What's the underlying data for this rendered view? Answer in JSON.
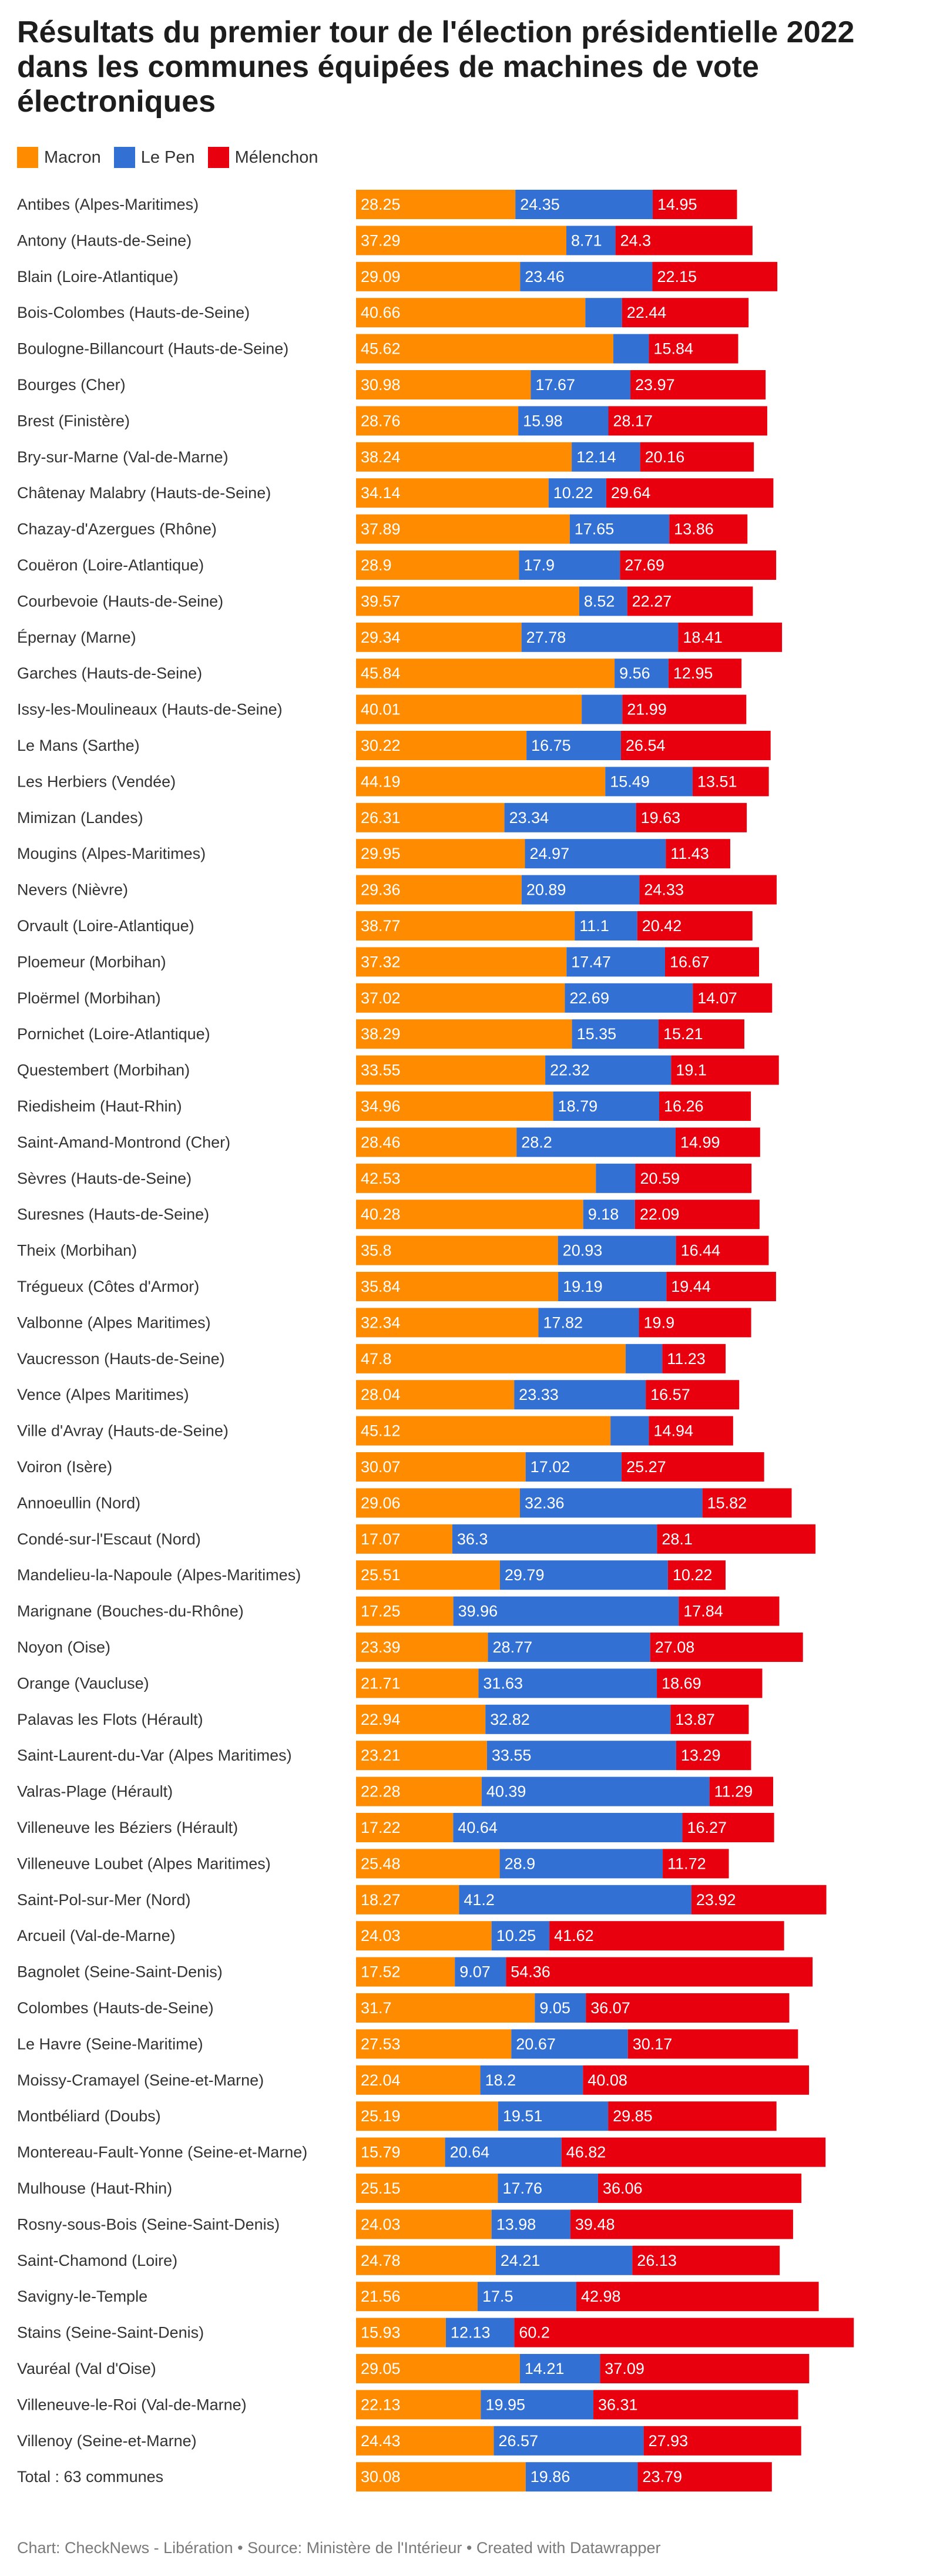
{
  "chart_data": {
    "type": "bar",
    "orientation": "horizontal",
    "stacked": true,
    "title": "Résultats du premier tour de l'élection présidentielle 2022 dans les communes équipées de machines de vote électroniques",
    "xlabel": "",
    "ylabel": "",
    "legend": "top-left",
    "grid": false,
    "xlim": [
      0,
      100
    ],
    "colors": {
      "Macron": "#ff8c00",
      "Le Pen": "#3370d4",
      "Mélenchon": "#e8000e"
    },
    "categories": [
      "Antibes (Alpes-Maritimes)",
      "Antony (Hauts-de-Seine)",
      "Blain (Loire-Atlantique)",
      "Bois-Colombes (Hauts-de-Seine)",
      "Boulogne-Billancourt (Hauts-de-Seine)",
      "Bourges (Cher)",
      "Brest (Finistère)",
      "Bry-sur-Marne (Val-de-Marne)",
      "Châtenay Malabry (Hauts-de-Seine)",
      "Chazay-d'Azergues (Rhône)",
      "Couëron (Loire-Atlantique)",
      "Courbevoie (Hauts-de-Seine)",
      "Épernay (Marne)",
      "Garches (Hauts-de-Seine)",
      "Issy-les-Moulineaux (Hauts-de-Seine)",
      "Le Mans (Sarthe)",
      "Les Herbiers (Vendée)",
      "Mimizan (Landes)",
      "Mougins (Alpes-Maritimes)",
      "Nevers (Nièvre)",
      "Orvault (Loire-Atlantique)",
      "Ploemeur (Morbihan)",
      "Ploërmel (Morbihan)",
      "Pornichet (Loire-Atlantique)",
      "Questembert (Morbihan)",
      "Riedisheim (Haut-Rhin)",
      "Saint-Amand-Montrond (Cher)",
      "Sèvres (Hauts-de-Seine)",
      "Suresnes (Hauts-de-Seine)",
      "Theix (Morbihan)",
      "Trégueux (Côtes d'Armor)",
      "Valbonne (Alpes Maritimes)",
      "Vaucresson (Hauts-de-Seine)",
      "Vence (Alpes Maritimes)",
      "Ville d'Avray (Hauts-de-Seine)",
      "Voiron (Isère)",
      "Annoeullin (Nord)",
      "Condé-sur-l'Escaut (Nord)",
      "Mandelieu-la-Napoule (Alpes-Maritimes)",
      "Marignane (Bouches-du-Rhône)",
      "Noyon (Oise)",
      "Orange (Vaucluse)",
      "Palavas les Flots (Hérault)",
      "Saint-Laurent-du-Var (Alpes Maritimes)",
      "Valras-Plage (Hérault)",
      "Villeneuve les Béziers (Hérault)",
      "Villeneuve Loubet (Alpes Maritimes)",
      "Saint-Pol-sur-Mer (Nord)",
      "Arcueil (Val-de-Marne)",
      "Bagnolet (Seine-Saint-Denis)",
      "Colombes (Hauts-de-Seine)",
      "Le Havre (Seine-Maritime)",
      "Moissy-Cramayel (Seine-et-Marne)",
      "Montbéliard (Doubs)",
      "Montereau-Fault-Yonne (Seine-et-Marne)",
      "Mulhouse (Haut-Rhin)",
      "Rosny-sous-Bois (Seine-Saint-Denis)",
      "Saint-Chamond (Loire)",
      "Savigny-le-Temple",
      "Stains (Seine-Saint-Denis)",
      "Vauréal (Val d'Oise)",
      "Villeneuve-le-Roi (Val-de-Marne)",
      "Villenoy (Seine-et-Marne)",
      "Total : 63 communes"
    ],
    "series": [
      {
        "name": "Macron",
        "values": [
          28.25,
          37.29,
          29.09,
          40.66,
          45.62,
          30.98,
          28.76,
          38.24,
          34.14,
          37.89,
          28.9,
          39.57,
          29.34,
          45.84,
          40.01,
          30.22,
          44.19,
          26.31,
          29.95,
          29.36,
          38.77,
          37.32,
          37.02,
          38.29,
          33.55,
          34.96,
          28.46,
          42.53,
          40.28,
          35.8,
          35.84,
          32.34,
          47.8,
          28.04,
          45.12,
          30.07,
          29.06,
          17.07,
          25.51,
          17.25,
          23.39,
          21.71,
          22.94,
          23.21,
          22.28,
          17.22,
          25.48,
          18.27,
          24.03,
          17.52,
          31.7,
          27.53,
          22.04,
          25.19,
          15.79,
          25.15,
          24.03,
          24.78,
          21.56,
          15.93,
          29.05,
          22.13,
          24.43,
          30.08
        ]
      },
      {
        "name": "Le Pen",
        "values": [
          24.35,
          8.71,
          23.46,
          6.5,
          6.3,
          17.67,
          15.98,
          12.14,
          10.22,
          17.65,
          17.9,
          8.52,
          27.78,
          9.56,
          7.2,
          16.75,
          15.49,
          23.34,
          24.97,
          20.89,
          11.1,
          17.47,
          22.69,
          15.35,
          22.32,
          18.79,
          28.2,
          7.0,
          9.18,
          20.93,
          19.19,
          17.82,
          6.5,
          23.33,
          6.8,
          17.02,
          32.36,
          36.3,
          29.79,
          39.96,
          28.77,
          31.63,
          32.82,
          33.55,
          40.39,
          40.64,
          28.9,
          41.2,
          10.25,
          9.07,
          9.05,
          20.67,
          18.2,
          19.51,
          20.64,
          17.76,
          13.98,
          24.21,
          17.5,
          12.13,
          14.21,
          19.95,
          26.57,
          19.86
        ]
      },
      {
        "name": "Mélenchon",
        "values": [
          14.95,
          24.3,
          22.15,
          22.44,
          15.84,
          23.97,
          28.17,
          20.16,
          29.64,
          13.86,
          27.69,
          22.27,
          18.41,
          12.95,
          21.99,
          26.54,
          13.51,
          19.63,
          11.43,
          24.33,
          20.42,
          16.67,
          14.07,
          15.21,
          19.1,
          16.26,
          14.99,
          20.59,
          22.09,
          16.44,
          19.44,
          19.9,
          11.23,
          16.57,
          14.94,
          25.27,
          15.82,
          28.1,
          10.22,
          17.84,
          27.08,
          18.69,
          13.87,
          13.29,
          11.29,
          16.27,
          11.72,
          23.92,
          41.62,
          54.36,
          36.07,
          30.17,
          40.08,
          29.85,
          46.82,
          36.06,
          39.48,
          26.13,
          42.98,
          60.2,
          37.09,
          36.31,
          27.93,
          23.79
        ]
      }
    ],
    "labels": {
      "Le Pen": [
        "24.35",
        "8.71",
        "23.46",
        "",
        "",
        "17.67",
        "15.98",
        "12.14",
        "10.22",
        "17.65",
        "17.9",
        "8.52",
        "27.78",
        "9.56",
        "",
        "16.75",
        "15.49",
        "23.34",
        "24.97",
        "20.89",
        "11.1",
        "17.47",
        "22.69",
        "15.35",
        "22.32",
        "18.79",
        "28.2",
        "",
        "9.18",
        "20.93",
        "19.19",
        "17.82",
        "",
        "23.33",
        "",
        "17.02",
        "32.36",
        "36.3",
        "29.79",
        "39.96",
        "28.77",
        "31.63",
        "32.82",
        "33.55",
        "40.39",
        "40.64",
        "28.9",
        "41.2",
        "10.25",
        "9.07",
        "9.05",
        "20.67",
        "18.2",
        "19.51",
        "20.64",
        "17.76",
        "13.98",
        "24.21",
        "17.5",
        "12.13",
        "14.21",
        "19.95",
        "26.57",
        "19.86"
      ]
    }
  },
  "legend": [
    {
      "label": "Macron",
      "color": "#ff8c00"
    },
    {
      "label": "Le Pen",
      "color": "#3370d4"
    },
    {
      "label": "Mélenchon",
      "color": "#e8000e"
    }
  ],
  "footer": "Chart: CheckNews - Libération • Source: Ministère de l'Intérieur • Created with Datawrapper"
}
